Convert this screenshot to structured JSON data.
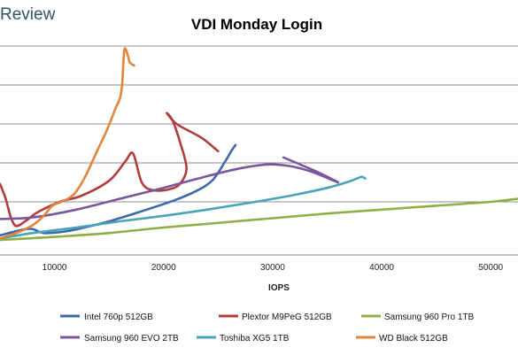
{
  "watermark": "Review",
  "chart_data": {
    "type": "line",
    "title": "VDI Monday Login",
    "xlabel": "IOPS",
    "ylabel": "",
    "xlim": [
      5000,
      52500
    ],
    "ylim": [
      0,
      6
    ],
    "y_gridlines": [
      1,
      2,
      3,
      4,
      5
    ],
    "x_ticks": [
      10000,
      20000,
      30000,
      40000,
      50000
    ],
    "x_tick_labels": [
      "10000",
      "20000",
      "30000",
      "40000",
      "50000"
    ],
    "grid": "horizontal",
    "legend_position": "bottom",
    "series": [
      {
        "name": "Intel 760p 512GB",
        "color": "#3d6aa8",
        "points": [
          [
            5000,
            0.14
          ],
          [
            7000,
            0.28
          ],
          [
            8000,
            0.3
          ],
          [
            9000,
            0.2
          ],
          [
            11000,
            0.24
          ],
          [
            13000,
            0.36
          ],
          [
            15000,
            0.5
          ],
          [
            18000,
            0.76
          ],
          [
            21000,
            1.04
          ],
          [
            23000,
            1.28
          ],
          [
            24500,
            1.56
          ],
          [
            25700,
            2.06
          ],
          [
            26200,
            2.3
          ],
          [
            26600,
            2.46
          ]
        ]
      },
      {
        "name": "Plextor M9PeG 512GB",
        "color": "#b13c3c",
        "points": [
          [
            5000,
            1.46
          ],
          [
            5500,
            1.1
          ],
          [
            6000,
            0.6
          ],
          [
            6500,
            0.38
          ],
          [
            7400,
            0.52
          ],
          [
            8500,
            0.74
          ],
          [
            10500,
            1.0
          ],
          [
            12500,
            1.16
          ],
          [
            15000,
            1.54
          ],
          [
            16500,
            2.04
          ],
          [
            17200,
            2.24
          ],
          [
            18000,
            1.5
          ],
          [
            19000,
            1.3
          ],
          [
            20500,
            1.32
          ],
          [
            21500,
            1.46
          ],
          [
            22100,
            1.86
          ],
          [
            21500,
            2.54
          ],
          [
            20800,
            3.1
          ],
          [
            20300,
            3.28
          ],
          [
            21200,
            3.0
          ],
          [
            23500,
            2.64
          ],
          [
            25000,
            2.3
          ]
        ]
      },
      {
        "name": "Samsung 960 Pro 1TB",
        "color": "#8cb046",
        "points": [
          [
            5000,
            0.02
          ],
          [
            10000,
            0.1
          ],
          [
            15000,
            0.2
          ],
          [
            20000,
            0.34
          ],
          [
            25000,
            0.46
          ],
          [
            30000,
            0.58
          ],
          [
            35000,
            0.7
          ],
          [
            40000,
            0.8
          ],
          [
            45000,
            0.9
          ],
          [
            50000,
            1.0
          ],
          [
            52500,
            1.08
          ]
        ]
      },
      {
        "name": "Samsung 960 EVO 2TB",
        "color": "#7a55a0",
        "points": [
          [
            5000,
            0.56
          ],
          [
            8000,
            0.6
          ],
          [
            12000,
            0.8
          ],
          [
            16000,
            1.08
          ],
          [
            20000,
            1.36
          ],
          [
            24000,
            1.66
          ],
          [
            27000,
            1.86
          ],
          [
            29500,
            1.96
          ],
          [
            31500,
            1.92
          ],
          [
            33500,
            1.78
          ],
          [
            36000,
            1.5
          ],
          [
            34000,
            1.78
          ],
          [
            31000,
            2.14
          ]
        ]
      },
      {
        "name": "Toshiba XG5 1TB",
        "color": "#4aa3b8",
        "points": [
          [
            5000,
            0.06
          ],
          [
            8000,
            0.2
          ],
          [
            12000,
            0.34
          ],
          [
            16000,
            0.5
          ],
          [
            20000,
            0.64
          ],
          [
            24000,
            0.8
          ],
          [
            28000,
            0.98
          ],
          [
            32000,
            1.18
          ],
          [
            35000,
            1.36
          ],
          [
            37000,
            1.52
          ],
          [
            37900,
            1.62
          ],
          [
            38200,
            1.64
          ],
          [
            38500,
            1.6
          ]
        ]
      },
      {
        "name": "WD Black 512GB",
        "color": "#e2853a",
        "points": [
          [
            5000,
            0.06
          ],
          [
            6500,
            0.2
          ],
          [
            8000,
            0.4
          ],
          [
            9000,
            0.64
          ],
          [
            9800,
            0.9
          ],
          [
            10800,
            1.02
          ],
          [
            11800,
            1.2
          ],
          [
            12800,
            1.64
          ],
          [
            13800,
            2.24
          ],
          [
            14800,
            2.84
          ],
          [
            15600,
            3.4
          ],
          [
            16000,
            3.66
          ],
          [
            16200,
            4.0
          ],
          [
            16400,
            4.9
          ],
          [
            16700,
            4.78
          ],
          [
            16900,
            4.58
          ],
          [
            17300,
            4.5
          ]
        ]
      }
    ]
  }
}
